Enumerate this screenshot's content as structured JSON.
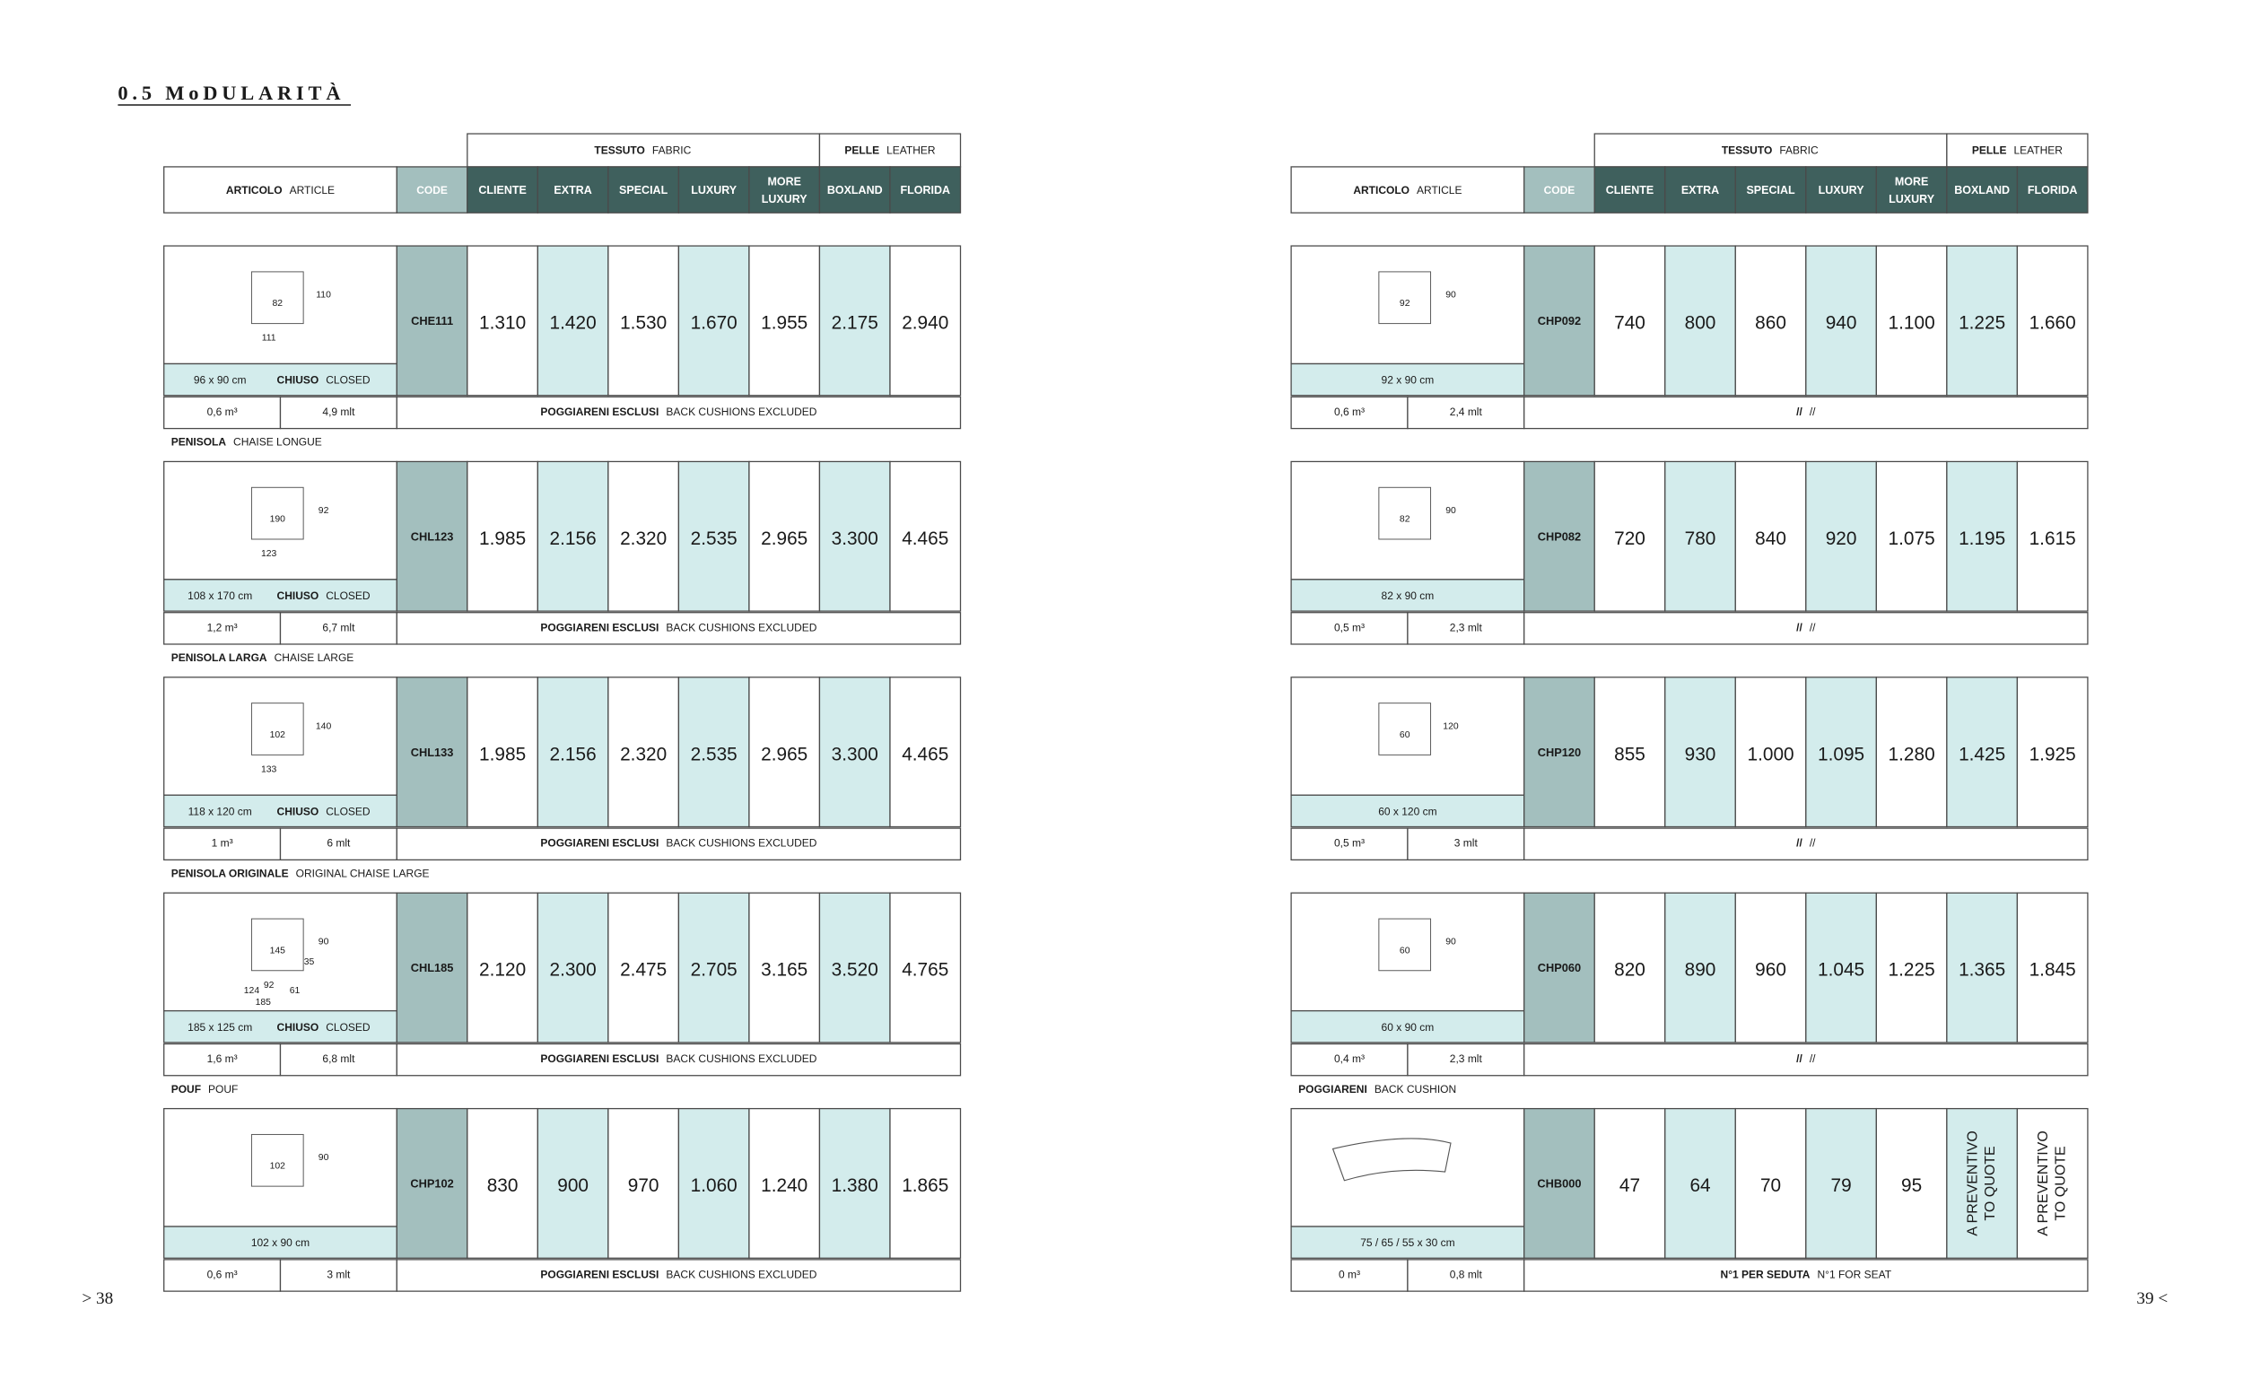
{
  "title": "0.5 MoDULARITÀ",
  "page_left": "> 38",
  "page_right": "39 <",
  "headers": {
    "group_fabric": [
      "TESSUTO",
      "FABRIC"
    ],
    "group_leather": [
      "PELLE",
      "LEATHER"
    ],
    "article": [
      "ARTICOLO",
      "ARTICLE"
    ],
    "code": "CODE",
    "columns": [
      [
        "CLIENTE"
      ],
      [
        "EXTRA"
      ],
      [
        "SPECIAL"
      ],
      [
        "LUXURY"
      ],
      [
        "MORE",
        "LUXURY"
      ],
      [
        "BOXLAND"
      ],
      [
        "FLORIDA"
      ]
    ],
    "closed": [
      "CHIUSO",
      "CLOSED"
    ]
  },
  "panels": [
    {
      "items": [
        {
          "dims": [
            "110",
            "82",
            "111"
          ],
          "size": "96 x 90 cm",
          "closed": true,
          "code": "CHE111",
          "prices": [
            "1.310",
            "1.420",
            "1.530",
            "1.670",
            "1.955",
            "2.175",
            "2.940"
          ],
          "volume": "0,6 m³",
          "mlt": "4,9 mlt",
          "note": [
            "POGGIARENI ESCLUSI",
            "BACK CUSHIONS EXCLUDED"
          ]
        },
        {
          "label": [
            "PENISOLA",
            "CHAISE LONGUE"
          ],
          "dims": [
            "92",
            "190",
            "123"
          ],
          "size": "108 x 170 cm",
          "closed": true,
          "code": "CHL123",
          "prices": [
            "1.985",
            "2.156",
            "2.320",
            "2.535",
            "2.965",
            "3.300",
            "4.465"
          ],
          "volume": "1,2 m³",
          "mlt": "6,7 mlt",
          "note": [
            "POGGIARENI ESCLUSI",
            "BACK CUSHIONS EXCLUDED"
          ]
        },
        {
          "label": [
            "PENISOLA LARGA",
            "CHAISE LARGE"
          ],
          "dims": [
            "140",
            "102",
            "133"
          ],
          "size": "118 x 120 cm",
          "closed": true,
          "code": "CHL133",
          "prices": [
            "1.985",
            "2.156",
            "2.320",
            "2.535",
            "2.965",
            "3.300",
            "4.465"
          ],
          "volume": "1 m³",
          "mlt": "6 mlt",
          "note": [
            "POGGIARENI ESCLUSI",
            "BACK CUSHIONS EXCLUDED"
          ]
        },
        {
          "label": [
            "PENISOLA ORIGINALE",
            "ORIGINAL CHAISE LARGE"
          ],
          "dims": [
            "90",
            "145",
            "92",
            "35",
            "124",
            "61",
            "185"
          ],
          "size": "185 x 125 cm",
          "closed": true,
          "code": "CHL185",
          "prices": [
            "2.120",
            "2.300",
            "2.475",
            "2.705",
            "3.165",
            "3.520",
            "4.765"
          ],
          "volume": "1,6 m³",
          "mlt": "6,8 mlt",
          "note": [
            "POGGIARENI ESCLUSI",
            "BACK CUSHIONS EXCLUDED"
          ]
        },
        {
          "label": [
            "POUF",
            "POUF"
          ],
          "dims": [
            "90",
            "102"
          ],
          "size": "102 x 90 cm",
          "closed": false,
          "code": "CHP102",
          "prices": [
            "830",
            "900",
            "970",
            "1.060",
            "1.240",
            "1.380",
            "1.865"
          ],
          "volume": "0,6 m³",
          "mlt": "3 mlt",
          "note": [
            "POGGIARENI ESCLUSI",
            "BACK CUSHIONS EXCLUDED"
          ]
        }
      ]
    },
    {
      "items": [
        {
          "dims": [
            "90",
            "92"
          ],
          "size": "92 x 90 cm",
          "closed": false,
          "code": "CHP092",
          "prices": [
            "740",
            "800",
            "860",
            "940",
            "1.100",
            "1.225",
            "1.660"
          ],
          "volume": "0,6 m³",
          "mlt": "2,4 mlt",
          "note": [
            "//",
            "//"
          ]
        },
        {
          "dims": [
            "90",
            "82"
          ],
          "size": "82 x 90 cm",
          "closed": false,
          "code": "CHP082",
          "prices": [
            "720",
            "780",
            "840",
            "920",
            "1.075",
            "1.195",
            "1.615"
          ],
          "volume": "0,5 m³",
          "mlt": "2,3 mlt",
          "note": [
            "//",
            "//"
          ]
        },
        {
          "dims": [
            "120",
            "60"
          ],
          "size": "60 x 120 cm",
          "closed": false,
          "code": "CHP120",
          "prices": [
            "855",
            "930",
            "1.000",
            "1.095",
            "1.280",
            "1.425",
            "1.925"
          ],
          "volume": "0,5 m³",
          "mlt": "3 mlt",
          "note": [
            "//",
            "//"
          ]
        },
        {
          "dims": [
            "90",
            "60"
          ],
          "size": "60 x 90 cm",
          "closed": false,
          "code": "CHP060",
          "prices": [
            "820",
            "890",
            "960",
            "1.045",
            "1.225",
            "1.365",
            "1.845"
          ],
          "volume": "0,4 m³",
          "mlt": "2,3 mlt",
          "note": [
            "//",
            "//"
          ]
        },
        {
          "label": [
            "POGGIARENI",
            "BACK CUSHION"
          ],
          "dims": [],
          "size": "75 / 65 / 55 x 30 cm",
          "closed": false,
          "code": "CHB000",
          "prices": [
            "47",
            "64",
            "70",
            "79",
            "95",
            [
              "A PREVENTIVO",
              "TO QUOTE"
            ],
            [
              "A PREVENTIVO",
              "TO QUOTE"
            ]
          ],
          "volume": "0 m³",
          "mlt": "0,8 mlt",
          "note": [
            "N°1 PER SEDUTA",
            "N°1 FOR SEAT"
          ]
        }
      ]
    }
  ]
}
